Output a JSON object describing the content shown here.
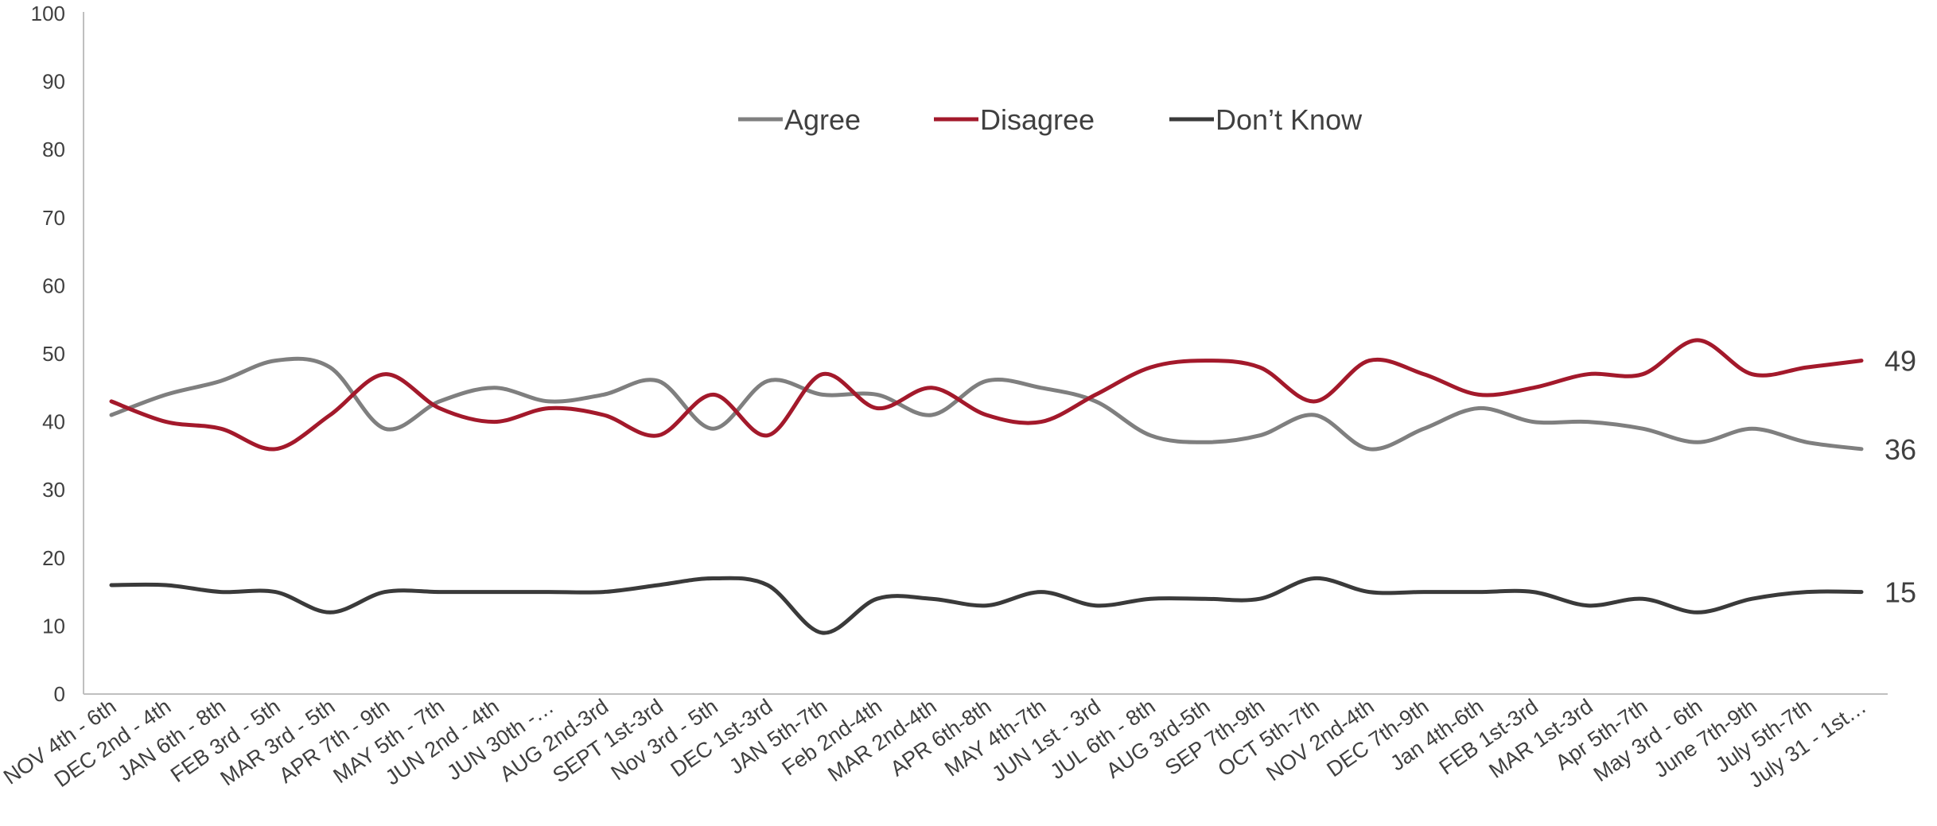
{
  "chart_data": {
    "type": "line",
    "title": "",
    "xlabel": "",
    "ylabel": "",
    "ylim": [
      0,
      100
    ],
    "yticks": [
      0,
      10,
      20,
      30,
      40,
      50,
      60,
      70,
      80,
      90,
      100
    ],
    "grid": false,
    "legend_position": "top-center",
    "categories": [
      "NOV 4th - 6th",
      "DEC 2nd - 4th",
      "JAN 6th - 8th",
      "FEB 3rd - 5th",
      "MAR 3rd - 5th",
      "APR 7th - 9th",
      "MAY 5th - 7th",
      "JUN 2nd - 4th",
      "JUN 30th -…",
      "AUG 2nd-3rd",
      "SEPT 1st-3rd",
      "Nov 3rd - 5th",
      "DEC 1st-3rd",
      "JAN 5th-7th",
      "Feb 2nd-4th",
      "MAR 2nd-4th",
      "APR 6th-8th",
      "MAY 4th-7th",
      "JUN 1st - 3rd",
      "JUL 6th - 8th",
      "AUG 3rd-5th",
      "SEP 7th-9th",
      "OCT 5th-7th",
      "NOV 2nd-4th",
      "DEC 7th-9th",
      "Jan 4th-6th",
      "FEB 1st-3rd",
      "MAR 1st-3rd",
      "Apr 5th-7th",
      "May 3rd - 6th",
      "June 7th-9th",
      "July 5th-7th",
      "July 31 - 1st…"
    ],
    "series": [
      {
        "name": "Agree",
        "color": "#7f7f7f",
        "values": [
          41,
          44,
          46,
          49,
          48,
          39,
          43,
          45,
          43,
          44,
          46,
          39,
          46,
          44,
          44,
          41,
          46,
          45,
          43,
          38,
          37,
          38,
          41,
          36,
          39,
          42,
          40,
          40,
          39,
          37,
          39,
          37,
          36
        ]
      },
      {
        "name": "Disagree",
        "color": "#a3192b",
        "values": [
          43,
          40,
          39,
          36,
          41,
          47,
          42,
          40,
          42,
          41,
          38,
          44,
          38,
          47,
          42,
          45,
          41,
          40,
          44,
          48,
          49,
          48,
          43,
          49,
          47,
          44,
          45,
          47,
          47,
          52,
          47,
          48,
          49
        ]
      },
      {
        "name": "Don’t Know",
        "color": "#3a3a3a",
        "values": [
          16,
          16,
          15,
          15,
          12,
          15,
          15,
          15,
          15,
          15,
          16,
          17,
          16,
          9,
          14,
          14,
          13,
          15,
          13,
          14,
          14,
          14,
          17,
          15,
          15,
          15,
          15,
          13,
          14,
          12,
          14,
          15,
          15
        ]
      }
    ],
    "end_labels": [
      "36",
      "49",
      "15"
    ]
  }
}
